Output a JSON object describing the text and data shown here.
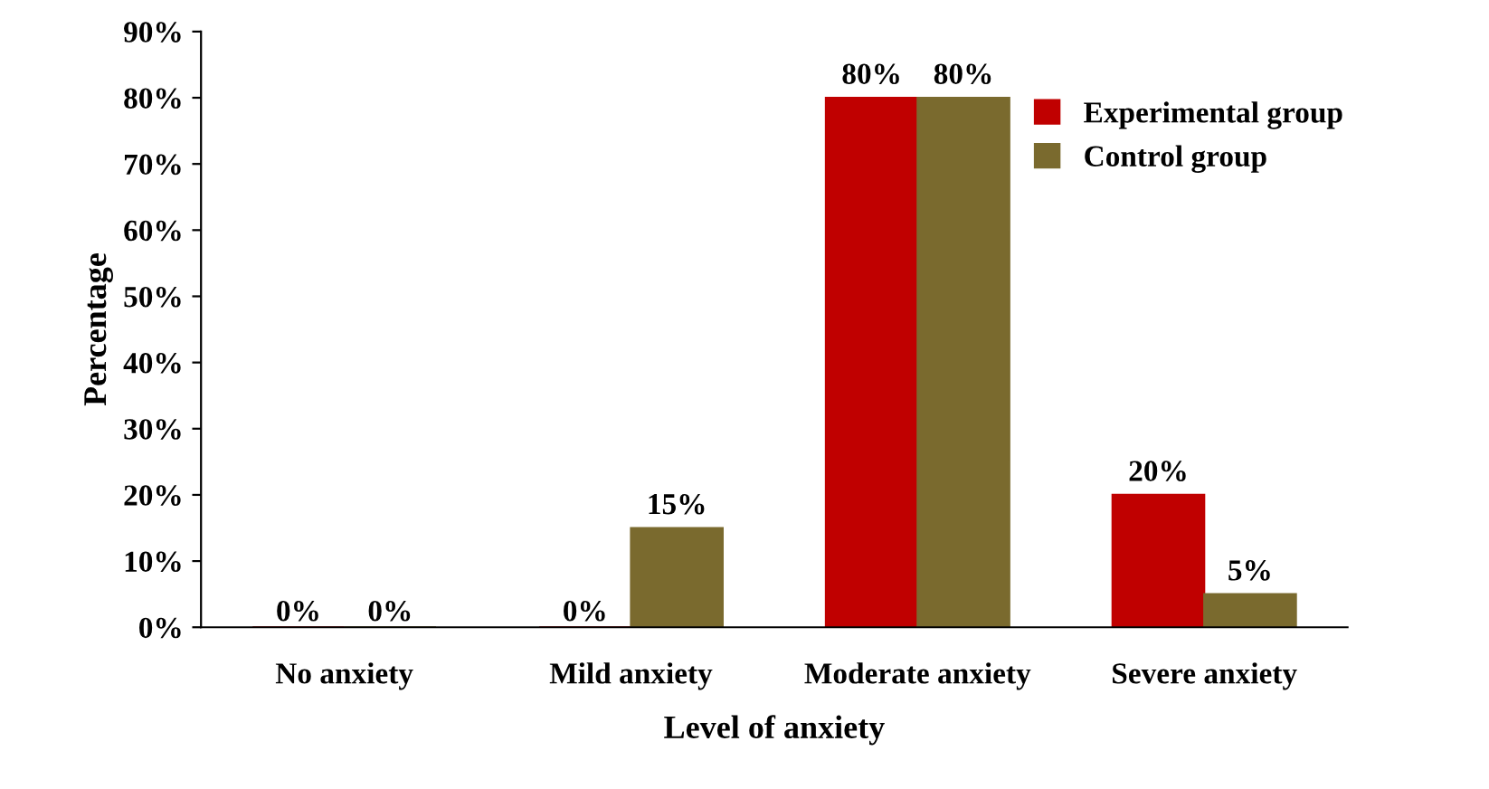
{
  "chart_data": {
    "type": "bar",
    "xlabel": "Level of anxiety",
    "ylabel": "Percentage",
    "categories": [
      "No anxiety",
      "Mild anxiety",
      "Moderate anxiety",
      "Severe anxiety"
    ],
    "series": [
      {
        "name": "Experimental group",
        "color": "#c00000",
        "values": [
          0,
          0,
          80,
          20
        ],
        "value_labels": [
          "0%",
          "0%",
          "80%",
          "20%"
        ]
      },
      {
        "name": "Control group",
        "color": "#7a6a2e",
        "values": [
          0,
          15,
          80,
          5
        ],
        "value_labels": [
          "0%",
          "15%",
          "80%",
          "5%"
        ]
      }
    ],
    "ylim": [
      0,
      90
    ],
    "yticks": [
      {
        "value": 0,
        "label": "0%"
      },
      {
        "value": 10,
        "label": "10%"
      },
      {
        "value": 20,
        "label": "20%"
      },
      {
        "value": 30,
        "label": "30%"
      },
      {
        "value": 40,
        "label": "40%"
      },
      {
        "value": 50,
        "label": "50%"
      },
      {
        "value": 60,
        "label": "60%"
      },
      {
        "value": 70,
        "label": "70%"
      },
      {
        "value": 80,
        "label": "80%"
      },
      {
        "value": 90,
        "label": "90%"
      }
    ],
    "grid": false,
    "legend": "top right"
  }
}
